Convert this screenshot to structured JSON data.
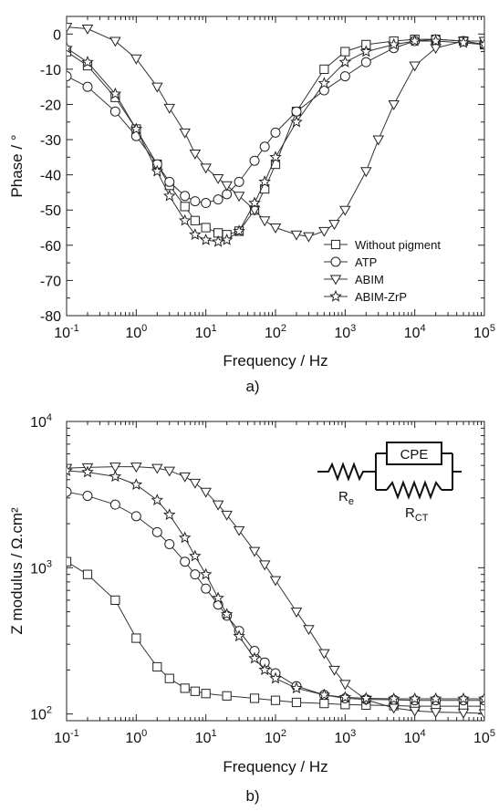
{
  "chart_data": [
    {
      "type": "line",
      "panel_label": "a)",
      "xlabel": "Frequency / Hz",
      "ylabel": "Phase / °",
      "x_scale": "log",
      "xlim": [
        0.1,
        100000
      ],
      "ylim": [
        -80,
        5
      ],
      "x_ticks": [
        {
          "v": 0.1,
          "base": "10",
          "exp": "-1"
        },
        {
          "v": 1,
          "base": "10",
          "exp": "0"
        },
        {
          "v": 10,
          "base": "10",
          "exp": "1"
        },
        {
          "v": 100,
          "base": "10",
          "exp": "2"
        },
        {
          "v": 1000,
          "base": "10",
          "exp": "3"
        },
        {
          "v": 10000,
          "base": "10",
          "exp": "4"
        },
        {
          "v": 100000,
          "base": "10",
          "exp": "5"
        }
      ],
      "y_ticks": [
        {
          "v": 0,
          "label": "0"
        },
        {
          "v": -10,
          "label": "-10"
        },
        {
          "v": -20,
          "label": "-20"
        },
        {
          "v": -30,
          "label": "-30"
        },
        {
          "v": -40,
          "label": "-40"
        },
        {
          "v": -50,
          "label": "-50"
        },
        {
          "v": -60,
          "label": "-60"
        },
        {
          "v": -70,
          "label": "-70"
        },
        {
          "v": -80,
          "label": "-80"
        }
      ],
      "grid": false,
      "legend": "bottom-right",
      "series": [
        {
          "name": "Without pigment",
          "marker": "square",
          "x": [
            0.1,
            0.2,
            0.5,
            1,
            2,
            3,
            5,
            7,
            10,
            15,
            20,
            30,
            50,
            70,
            100,
            200,
            500,
            1000,
            2000,
            5000,
            10000,
            20000,
            50000,
            100000
          ],
          "y": [
            -5,
            -9,
            -18,
            -27,
            -37,
            -43,
            -49,
            -53,
            -55,
            -56.5,
            -57,
            -56,
            -50,
            -44,
            -37,
            -22,
            -10,
            -5,
            -3,
            -2,
            -1.5,
            -1.5,
            -2,
            -3
          ]
        },
        {
          "name": "ATP",
          "marker": "circle",
          "x": [
            0.1,
            0.2,
            0.5,
            1,
            2,
            3,
            5,
            7,
            10,
            15,
            20,
            30,
            50,
            70,
            100,
            200,
            500,
            1000,
            2000,
            5000,
            10000,
            20000,
            50000,
            100000
          ],
          "y": [
            -12,
            -15,
            -22,
            -29,
            -37,
            -42,
            -46,
            -47.5,
            -48,
            -47,
            -45.5,
            -42,
            -36,
            -32,
            -28,
            -22,
            -16,
            -12,
            -8,
            -4,
            -2,
            -1.5,
            -2,
            -3
          ]
        },
        {
          "name": "ABIM",
          "marker": "triangle",
          "x": [
            0.1,
            0.2,
            0.5,
            1,
            2,
            3,
            5,
            7,
            10,
            15,
            20,
            30,
            50,
            70,
            100,
            200,
            300,
            500,
            700,
            1000,
            2000,
            3000,
            5000,
            10000,
            20000,
            50000,
            100000
          ],
          "y": [
            2,
            1.5,
            -2,
            -7,
            -15,
            -21,
            -28,
            -34,
            -38,
            -41,
            -43,
            -46,
            -50,
            -53,
            -55,
            -57,
            -57.5,
            -56,
            -54,
            -50,
            -39,
            -30,
            -20,
            -9,
            -4,
            -2,
            -2
          ]
        },
        {
          "name": "ABIM-ZrP",
          "marker": "star",
          "x": [
            0.1,
            0.2,
            0.5,
            1,
            2,
            3,
            5,
            7,
            10,
            15,
            20,
            30,
            50,
            70,
            100,
            200,
            500,
            1000,
            2000,
            5000,
            10000,
            20000,
            50000,
            100000
          ],
          "y": [
            -4,
            -8,
            -17,
            -27,
            -39,
            -46,
            -53,
            -57,
            -58.5,
            -59,
            -58.5,
            -56,
            -48,
            -42,
            -35,
            -25,
            -14,
            -8,
            -5,
            -3,
            -2,
            -2,
            -2.5,
            -3
          ]
        }
      ]
    },
    {
      "type": "line",
      "panel_label": "b)",
      "xlabel": "Frequency / Hz",
      "ylabel": "Z modulus / Ω.cm²",
      "x_scale": "log",
      "y_scale": "log",
      "xlim": [
        0.1,
        100000
      ],
      "ylim": [
        90,
        10000
      ],
      "x_ticks": [
        {
          "v": 0.1,
          "base": "10",
          "exp": "-1"
        },
        {
          "v": 1,
          "base": "10",
          "exp": "0"
        },
        {
          "v": 10,
          "base": "10",
          "exp": "1"
        },
        {
          "v": 100,
          "base": "10",
          "exp": "2"
        },
        {
          "v": 1000,
          "base": "10",
          "exp": "3"
        },
        {
          "v": 10000,
          "base": "10",
          "exp": "4"
        },
        {
          "v": 100000,
          "base": "10",
          "exp": "5"
        }
      ],
      "y_ticks": [
        {
          "v": 100,
          "base": "10",
          "exp": "2"
        },
        {
          "v": 1000,
          "base": "10",
          "exp": "3"
        },
        {
          "v": 10000,
          "base": "10",
          "exp": "4"
        }
      ],
      "grid": false,
      "circuit": {
        "cpe_label": "CPE",
        "re_main": "R",
        "re_sub": "e",
        "rct_main": "R",
        "rct_sub": "CT"
      },
      "series": [
        {
          "name": "Without pigment",
          "marker": "square",
          "x": [
            0.1,
            0.2,
            0.5,
            1,
            2,
            3,
            5,
            7,
            10,
            20,
            50,
            100,
            200,
            500,
            1000,
            2000,
            5000,
            10000,
            20000,
            50000,
            100000
          ],
          "y": [
            1100,
            900,
            600,
            330,
            210,
            175,
            150,
            143,
            138,
            133,
            128,
            124,
            120,
            118,
            116,
            115,
            114,
            113,
            113,
            113,
            113
          ]
        },
        {
          "name": "ATP",
          "marker": "circle",
          "x": [
            0.1,
            0.2,
            0.5,
            1,
            2,
            3,
            5,
            7,
            10,
            15,
            20,
            30,
            50,
            70,
            100,
            200,
            500,
            1000,
            2000,
            5000,
            10000,
            20000,
            50000,
            100000
          ],
          "y": [
            3300,
            3100,
            2700,
            2250,
            1750,
            1450,
            1100,
            900,
            720,
            560,
            470,
            370,
            270,
            225,
            190,
            155,
            135,
            128,
            126,
            125,
            124,
            124,
            124,
            124
          ]
        },
        {
          "name": "ABIM",
          "marker": "triangle",
          "x": [
            0.1,
            0.2,
            0.5,
            1,
            2,
            3,
            5,
            7,
            10,
            15,
            20,
            30,
            50,
            70,
            100,
            200,
            300,
            500,
            700,
            1000,
            2000,
            5000,
            10000,
            20000,
            50000,
            100000
          ],
          "y": [
            4800,
            4850,
            4900,
            4900,
            4800,
            4600,
            4200,
            3800,
            3300,
            2700,
            2300,
            1800,
            1300,
            1050,
            820,
            500,
            380,
            260,
            200,
            160,
            125,
            110,
            105,
            103,
            102,
            101
          ]
        },
        {
          "name": "ABIM-ZrP",
          "marker": "star",
          "x": [
            0.1,
            0.2,
            0.5,
            1,
            2,
            3,
            5,
            7,
            10,
            15,
            20,
            30,
            50,
            70,
            100,
            200,
            500,
            1000,
            2000,
            5000,
            10000,
            20000,
            50000,
            100000
          ],
          "y": [
            4600,
            4500,
            4200,
            3700,
            2900,
            2300,
            1600,
            1200,
            900,
            620,
            480,
            340,
            240,
            200,
            175,
            150,
            135,
            130,
            128,
            127,
            127,
            127,
            127,
            127
          ]
        }
      ]
    }
  ]
}
